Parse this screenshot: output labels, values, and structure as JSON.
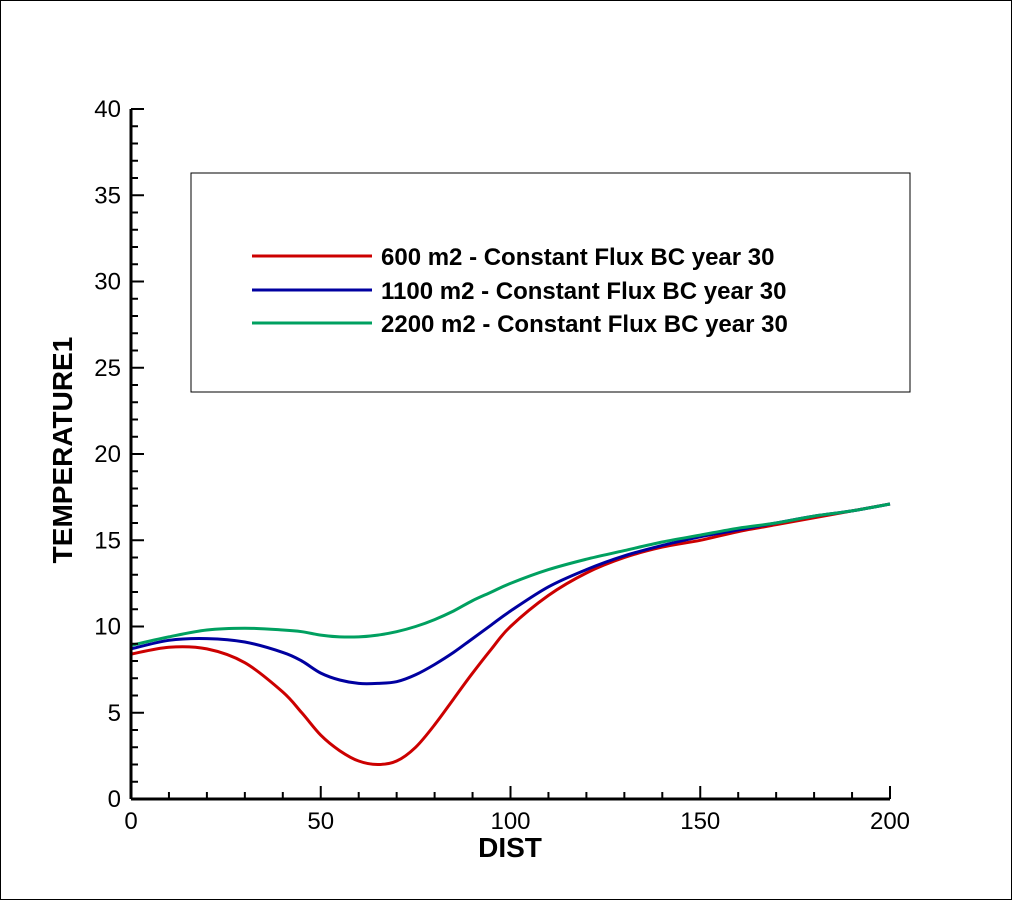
{
  "chart_data": {
    "type": "line",
    "xlabel": "DIST",
    "ylabel": "TEMPERATURE1",
    "xlim": [
      0,
      200
    ],
    "ylim": [
      0,
      40
    ],
    "x_ticks": [
      0,
      50,
      100,
      150,
      200
    ],
    "y_ticks": [
      0,
      5,
      10,
      15,
      20,
      25,
      30,
      35,
      40
    ],
    "grid": false,
    "legend_position": "top-center",
    "series": [
      {
        "name": "600 m2 - Constant Flux BC year 30",
        "color": "#cc0000",
        "x": [
          0,
          10,
          20,
          30,
          40,
          45,
          50,
          55,
          60,
          65,
          70,
          75,
          80,
          85,
          90,
          95,
          100,
          110,
          120,
          130,
          140,
          150,
          160,
          170,
          180,
          190,
          200
        ],
        "y": [
          8.4,
          8.8,
          8.7,
          7.9,
          6.2,
          5.0,
          3.7,
          2.8,
          2.2,
          2.0,
          2.2,
          3.0,
          4.3,
          5.8,
          7.3,
          8.7,
          10.0,
          11.8,
          13.1,
          14.0,
          14.6,
          15.0,
          15.5,
          15.9,
          16.3,
          16.7,
          17.1
        ]
      },
      {
        "name": "1100 m2 - Constant Flux BC year 30",
        "color": "#0000a0",
        "x": [
          0,
          10,
          20,
          30,
          40,
          45,
          50,
          55,
          60,
          65,
          70,
          75,
          80,
          85,
          90,
          95,
          100,
          110,
          120,
          130,
          140,
          150,
          160,
          170,
          180,
          190,
          200
        ],
        "y": [
          8.7,
          9.2,
          9.3,
          9.1,
          8.5,
          8.0,
          7.3,
          6.9,
          6.7,
          6.7,
          6.8,
          7.2,
          7.8,
          8.5,
          9.3,
          10.1,
          10.9,
          12.3,
          13.3,
          14.1,
          14.7,
          15.2,
          15.6,
          16.0,
          16.4,
          16.7,
          17.1
        ]
      },
      {
        "name": "2200 m2 - Constant Flux BC year 30",
        "color": "#00a060",
        "x": [
          0,
          10,
          20,
          30,
          40,
          45,
          50,
          55,
          60,
          65,
          70,
          75,
          80,
          85,
          90,
          95,
          100,
          110,
          120,
          130,
          140,
          150,
          160,
          170,
          180,
          190,
          200
        ],
        "y": [
          8.9,
          9.4,
          9.8,
          9.9,
          9.8,
          9.7,
          9.5,
          9.4,
          9.4,
          9.5,
          9.7,
          10.0,
          10.4,
          10.9,
          11.5,
          12.0,
          12.5,
          13.3,
          13.9,
          14.4,
          14.9,
          15.3,
          15.7,
          16.0,
          16.4,
          16.7,
          17.1
        ]
      }
    ]
  }
}
